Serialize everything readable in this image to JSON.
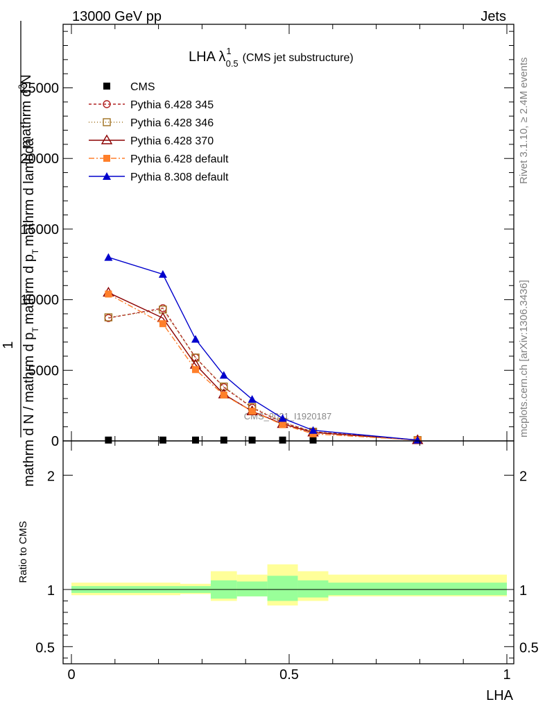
{
  "header": {
    "left": "13000 GeV pp",
    "right": "Jets"
  },
  "side": {
    "right_top": "Rivet 3.1.10, ≥ 2.4M events",
    "right_bottom": "mcplots.cern.ch [arXiv:1306.3436]"
  },
  "watermark": "CMS_2021_I1920187",
  "chart_data": [
    {
      "type": "line",
      "title_main": "LHA λ",
      "title_sup": "1",
      "title_sub": "0.5",
      "title_suffix": "(CMS jet substructure)",
      "ylabel_top": "1",
      "ylabel_bottom": "mathrm d N / mathrm d p",
      "ylabel_bottom_sub": "T",
      "ylabel_rest": "mathrm d p",
      "ylabel_rest_sub": "T",
      "ylabel_tail": "mathrm d lambda",
      "ylabel_numerator": "mathrm d",
      "ylabel_numerator_sup": "2",
      "ylabel_numerator_tail": "N",
      "ylim": [
        0,
        29500
      ],
      "yticks": [
        0,
        5000,
        10000,
        15000,
        20000,
        25000
      ],
      "ytick_labels": [
        "0",
        "5000",
        "10000",
        "15000",
        "20000",
        "25000"
      ],
      "xlim": [
        -0.02,
        1.0
      ],
      "x": [
        0.085,
        0.21,
        0.285,
        0.35,
        0.415,
        0.485,
        0.555,
        0.795
      ],
      "series": [
        {
          "name": "CMS",
          "color": "#000000",
          "marker": "square",
          "dash": "none",
          "values": [
            10,
            10,
            10,
            10,
            10,
            10,
            10,
            10
          ]
        },
        {
          "name": "Pythia 6.428 345",
          "color": "#b22222",
          "marker": "circle-open",
          "dash": "4,3",
          "values": [
            8700,
            9400,
            5900,
            3800,
            2350,
            1300,
            650,
            60
          ]
        },
        {
          "name": "Pythia 6.428 346",
          "color": "#a0701e",
          "marker": "square-open",
          "dash": "1,3",
          "values": [
            8750,
            9300,
            5900,
            3850,
            2400,
            1350,
            650,
            60
          ]
        },
        {
          "name": "Pythia 6.428 370",
          "color": "#8b0000",
          "marker": "triangle-open",
          "dash": "none",
          "values": [
            10500,
            8700,
            5400,
            3300,
            2100,
            1200,
            600,
            60
          ]
        },
        {
          "name": "Pythia 6.428 default",
          "color": "#ff7f2a",
          "marker": "square",
          "dash": "8,3,2,3",
          "values": [
            10400,
            8300,
            5050,
            3250,
            2100,
            1150,
            500,
            60
          ]
        },
        {
          "name": "Pythia 8.308 default",
          "color": "#0000cc",
          "marker": "triangle",
          "dash": "none",
          "values": [
            13000,
            11800,
            7200,
            4650,
            2950,
            1600,
            750,
            60
          ]
        }
      ]
    },
    {
      "type": "area",
      "ylabel": "Ratio to CMS",
      "xlabel": "LHA",
      "ylim": [
        0.35,
        2.3
      ],
      "yticks": [
        0.5,
        1,
        2
      ],
      "ytick_labels": [
        "0.5",
        "1",
        "2"
      ],
      "xticks": [
        0,
        0.5,
        1
      ],
      "xtick_labels": [
        "0",
        "0.5",
        "1"
      ],
      "edges": [
        0.0,
        0.25,
        0.32,
        0.38,
        0.45,
        0.52,
        0.59,
        1.0
      ],
      "inner_band": [
        [
          0.97,
          1.03
        ],
        [
          0.97,
          1.03
        ],
        [
          0.92,
          1.08
        ],
        [
          0.94,
          1.07
        ],
        [
          0.9,
          1.12
        ],
        [
          0.93,
          1.08
        ],
        [
          0.95,
          1.06
        ],
        [
          0.95,
          1.06
        ]
      ],
      "outer_band": [
        [
          0.95,
          1.06
        ],
        [
          0.96,
          1.05
        ],
        [
          0.9,
          1.16
        ],
        [
          0.94,
          1.13
        ],
        [
          0.86,
          1.22
        ],
        [
          0.9,
          1.16
        ],
        [
          0.94,
          1.13
        ],
        [
          0.89,
          1.18
        ]
      ],
      "inner_color": "#99ff99",
      "outer_color": "#ffff99",
      "reference_line": 1
    }
  ]
}
